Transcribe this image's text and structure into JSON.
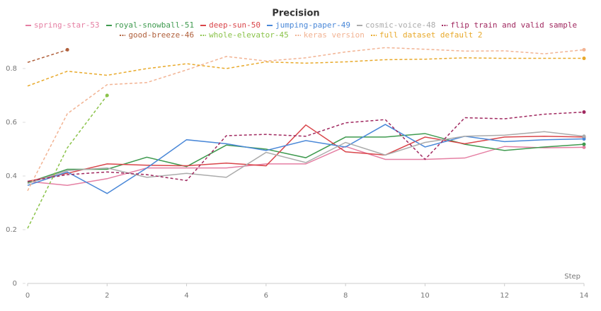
{
  "chart_data": {
    "type": "line",
    "title": "Precision",
    "x_label": "Step",
    "x": [
      0,
      1,
      2,
      3,
      4,
      5,
      6,
      7,
      8,
      9,
      10,
      11,
      12,
      13,
      14
    ],
    "xlim": [
      0,
      14
    ],
    "xticks": [
      0,
      2,
      4,
      6,
      8,
      10,
      12,
      14
    ],
    "ylim": [
      0,
      0.92
    ],
    "yticks": [
      0,
      0.2,
      0.4,
      0.6,
      0.8
    ],
    "series": [
      {
        "name": "spring-star-53",
        "color": "#e57fa3",
        "dashed": false,
        "values": [
          0.38,
          0.365,
          0.39,
          0.43,
          0.43,
          0.43,
          0.445,
          0.445,
          0.51,
          0.462,
          0.462,
          0.467,
          0.51,
          0.505,
          0.507
        ]
      },
      {
        "name": "royal-snowball-51",
        "color": "#3f9a4f",
        "dashed": false,
        "values": [
          0.375,
          0.425,
          0.425,
          0.47,
          0.435,
          0.515,
          0.5,
          0.468,
          0.545,
          0.545,
          0.558,
          0.518,
          0.495,
          0.508,
          0.518
        ]
      },
      {
        "name": "deep-sun-50",
        "color": "#d9454a",
        "dashed": false,
        "values": [
          0.38,
          0.41,
          0.445,
          0.44,
          0.438,
          0.448,
          0.438,
          0.59,
          0.49,
          0.478,
          0.545,
          0.52,
          0.545,
          0.548,
          0.545
        ]
      },
      {
        "name": "jumping-paper-49",
        "color": "#4a88d8",
        "dashed": false,
        "values": [
          0.365,
          0.415,
          0.335,
          0.43,
          0.535,
          0.52,
          0.495,
          0.532,
          0.508,
          0.592,
          0.508,
          0.548,
          0.528,
          0.535,
          0.538
        ]
      },
      {
        "name": "cosmic-voice-48",
        "color": "#ababab",
        "dashed": false,
        "values": [
          0.372,
          0.42,
          0.43,
          0.395,
          0.41,
          0.395,
          0.488,
          0.45,
          0.525,
          0.478,
          0.525,
          0.548,
          0.552,
          0.565,
          0.548
        ]
      },
      {
        "name": "flip train and valid sample",
        "color": "#a0285f",
        "dashed": true,
        "values": [
          0.38,
          0.405,
          0.415,
          0.405,
          0.383,
          0.55,
          0.555,
          0.548,
          0.598,
          0.61,
          0.462,
          0.617,
          0.613,
          0.63,
          0.638
        ]
      },
      {
        "name": "good-breeze-46",
        "color": "#b0603c",
        "dashed": true,
        "values": [
          0.823,
          0.87,
          null,
          null,
          null,
          null,
          null,
          null,
          null,
          null,
          null,
          null,
          null,
          null,
          null
        ]
      },
      {
        "name": "whole-elevator-45",
        "color": "#8bc34a",
        "dashed": true,
        "values": [
          0.205,
          0.505,
          0.7,
          null,
          null,
          null,
          null,
          null,
          null,
          null,
          null,
          null,
          null,
          null,
          null
        ]
      },
      {
        "name": "keras version",
        "color": "#f2b393",
        "dashed": true,
        "values": [
          0.345,
          0.632,
          0.74,
          0.748,
          0.795,
          0.845,
          0.828,
          0.84,
          0.862,
          0.878,
          0.872,
          0.865,
          0.866,
          0.855,
          0.87
        ]
      },
      {
        "name": "full dataset default 2",
        "color": "#e8a92a",
        "dashed": true,
        "values": [
          0.735,
          0.79,
          0.775,
          0.8,
          0.818,
          0.8,
          0.825,
          0.82,
          0.825,
          0.833,
          0.835,
          0.84,
          0.838,
          0.838,
          0.838
        ]
      }
    ]
  }
}
